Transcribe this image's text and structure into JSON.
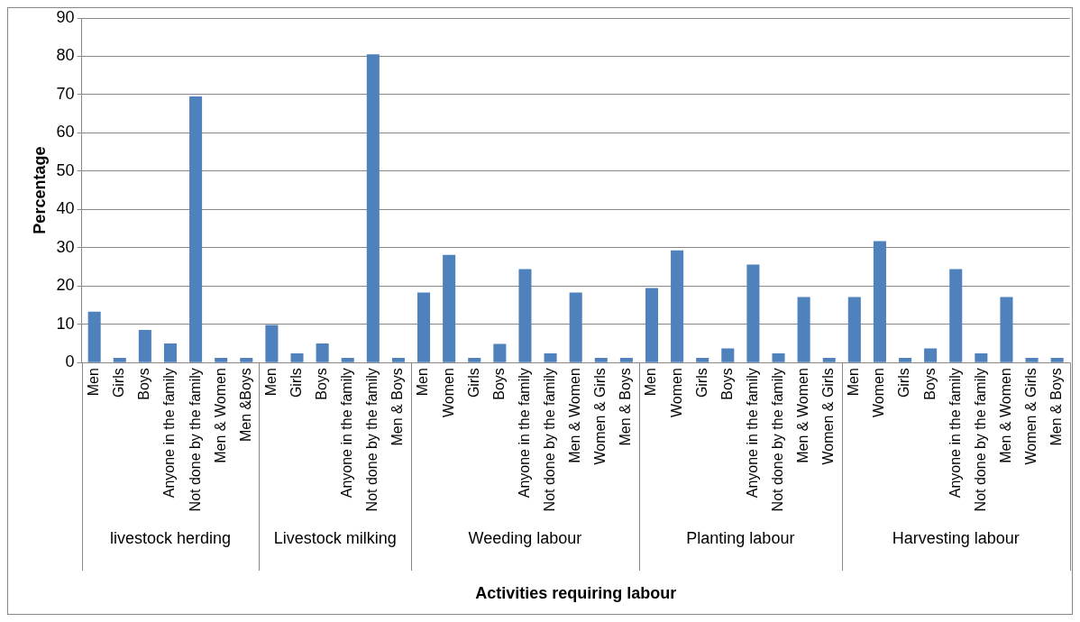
{
  "chart_data": {
    "type": "bar",
    "xlabel": "Activities requiring labour",
    "ylabel": "Percentage",
    "categories": [
      "Men",
      "Girls",
      "Boys",
      "Anyone in the family",
      "Not done by the family",
      "Men & Women",
      "Men &Boys",
      "Men",
      "Girls",
      "Boys",
      "Anyone in the family",
      "Not done by the family",
      "Men & Boys",
      "Men",
      "Women",
      "Girls",
      "Boys",
      "Anyone in the family",
      "Not done by the family",
      "Men & Women",
      "Women & Girls",
      "Men & Boys",
      "Men",
      "Women",
      "Girls",
      "Boys",
      "Anyone in the family",
      "Not done by the family",
      "Men & Women",
      "Women & Girls",
      "Men",
      "Women",
      "Girls",
      "Boys",
      "Anyone in the family",
      "Not done by the family",
      "Men & Women",
      "Women & Girls",
      "Men & Boys"
    ],
    "values": [
      13.3,
      1.2,
      8.5,
      5,
      69.5,
      1.2,
      1.2,
      9.8,
      2.4,
      5,
      1.2,
      80.5,
      1.2,
      18.3,
      28.1,
      1.2,
      4.9,
      24.4,
      2.4,
      18.3,
      1.2,
      1.2,
      19.5,
      29.3,
      1.2,
      3.7,
      25.6,
      2.4,
      17.1,
      1.2,
      17.1,
      31.7,
      1.2,
      3.7,
      24.4,
      2.4,
      17.1,
      1.2,
      1.2
    ],
    "color": "#4f81bd",
    "ylim": [
      0,
      90
    ],
    "yticks": [
      0,
      10,
      20,
      30,
      40,
      50,
      60,
      70,
      80,
      90
    ],
    "grid": "y",
    "legend": false,
    "annotations": [
      "livestock herding",
      "Livestock milking",
      "Weeding labour",
      "Planting labour",
      "Harvesting labour"
    ]
  }
}
